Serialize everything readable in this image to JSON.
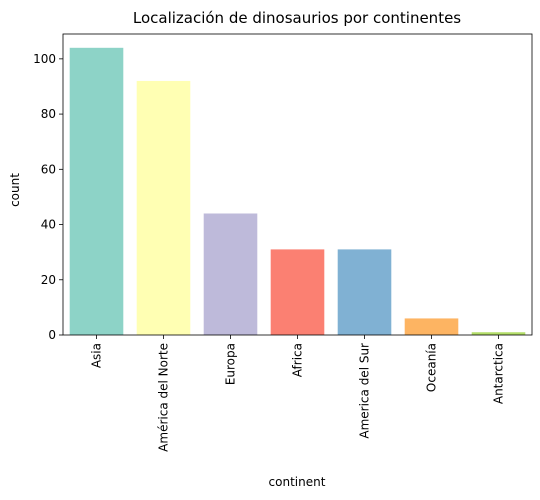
{
  "chart_data": {
    "type": "bar",
    "title": "Localización de dinosaurios por continentes",
    "xlabel": "continent",
    "ylabel": "count",
    "categories": [
      "Asia",
      "América del Norte",
      "Europa",
      "Africa",
      "America del Sur",
      "Oceanía",
      "Antarctica"
    ],
    "values": [
      104,
      92,
      44,
      31,
      31,
      6,
      1
    ],
    "colors": [
      "#8dd3c7",
      "#ffffb3",
      "#bebada",
      "#fb8072",
      "#80b1d3",
      "#fdb462",
      "#b3de69"
    ],
    "ylim": [
      0,
      109
    ],
    "yticks": [
      0,
      20,
      40,
      60,
      80,
      100
    ],
    "grid": false,
    "legend": "none"
  }
}
